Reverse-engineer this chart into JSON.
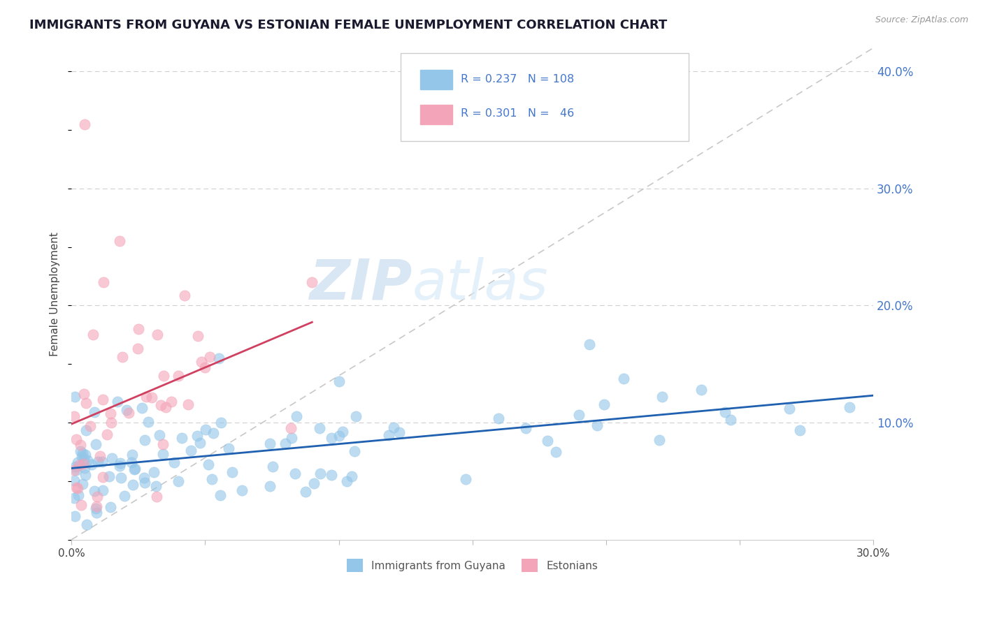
{
  "title": "IMMIGRANTS FROM GUYANA VS ESTONIAN FEMALE UNEMPLOYMENT CORRELATION CHART",
  "source_text": "Source: ZipAtlas.com",
  "ylabel": "Female Unemployment",
  "watermark_zip": "ZIP",
  "watermark_atlas": "atlas",
  "xlim": [
    0.0,
    0.3
  ],
  "ylim": [
    0.0,
    0.42
  ],
  "xtick_positions": [
    0.0,
    0.05,
    0.1,
    0.15,
    0.2,
    0.25,
    0.3
  ],
  "xticklabels": [
    "0.0%",
    "",
    "",
    "",
    "",
    "",
    "30.0%"
  ],
  "yticks_right": [
    0.1,
    0.2,
    0.3,
    0.4
  ],
  "ytick_labels_right": [
    "10.0%",
    "20.0%",
    "30.0%",
    "40.0%"
  ],
  "color_blue": "#93c6e8",
  "color_pink": "#f4a4b8",
  "color_trend_blue": "#2060b0",
  "color_trend_pink": "#d04060",
  "color_axis_label": "#4477cc",
  "title_color": "#1a1a2e",
  "title_fontsize": 13,
  "axis_label_fontsize": 11,
  "scatter_alpha": 0.6,
  "scatter_size": 120
}
